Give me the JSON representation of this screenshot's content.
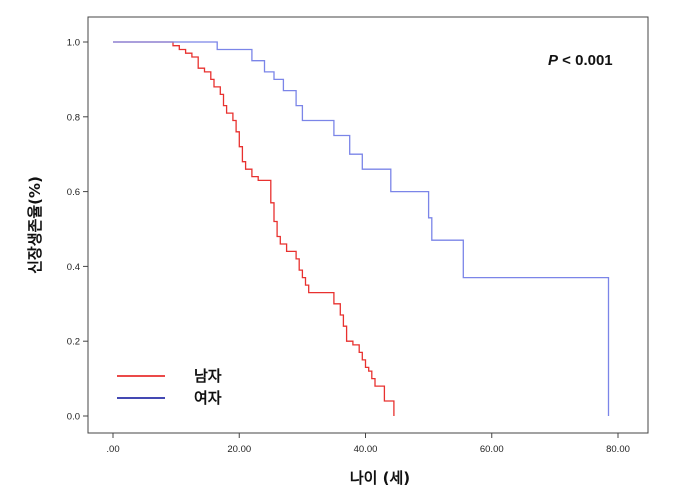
{
  "chart_data": {
    "type": "line",
    "subtype": "kaplan-meier-step",
    "xlabel": "나이 (세)",
    "ylabel": "신장생존율(%)",
    "xlim": [
      0,
      80
    ],
    "ylim": [
      0.0,
      1.0
    ],
    "xticks": [
      0,
      20,
      40,
      60,
      80
    ],
    "xtick_labels": [
      ".00",
      "20.00",
      "40.00",
      "60.00",
      "80.00"
    ],
    "yticks": [
      0.0,
      0.2,
      0.4,
      0.6,
      0.8,
      1.0
    ],
    "ytick_labels": [
      "0.0",
      "0.2",
      "0.4",
      "0.6",
      "0.8",
      "1.0"
    ],
    "annotation": {
      "italic": "P",
      "rest": " < 0.001"
    },
    "legend_position": "bottom-left",
    "grid": false,
    "series": [
      {
        "name": "남자",
        "color": "#e8312f",
        "points": [
          [
            0,
            1.0
          ],
          [
            9.5,
            1.0
          ],
          [
            9.5,
            0.99
          ],
          [
            10.5,
            0.99
          ],
          [
            10.5,
            0.98
          ],
          [
            11.5,
            0.98
          ],
          [
            11.5,
            0.97
          ],
          [
            12.5,
            0.97
          ],
          [
            12.5,
            0.96
          ],
          [
            13.5,
            0.96
          ],
          [
            13.5,
            0.93
          ],
          [
            14.5,
            0.93
          ],
          [
            14.5,
            0.92
          ],
          [
            15.5,
            0.92
          ],
          [
            15.5,
            0.9
          ],
          [
            16.0,
            0.9
          ],
          [
            16.0,
            0.88
          ],
          [
            17.0,
            0.88
          ],
          [
            17.0,
            0.86
          ],
          [
            17.5,
            0.86
          ],
          [
            17.5,
            0.83
          ],
          [
            18.0,
            0.83
          ],
          [
            18.0,
            0.81
          ],
          [
            19.0,
            0.81
          ],
          [
            19.0,
            0.79
          ],
          [
            19.5,
            0.79
          ],
          [
            19.5,
            0.76
          ],
          [
            20.0,
            0.76
          ],
          [
            20.0,
            0.72
          ],
          [
            20.5,
            0.72
          ],
          [
            20.5,
            0.68
          ],
          [
            21.0,
            0.68
          ],
          [
            21.0,
            0.66
          ],
          [
            22.0,
            0.66
          ],
          [
            22.0,
            0.64
          ],
          [
            23.0,
            0.64
          ],
          [
            23.0,
            0.63
          ],
          [
            25.0,
            0.63
          ],
          [
            25.0,
            0.57
          ],
          [
            25.5,
            0.57
          ],
          [
            25.5,
            0.52
          ],
          [
            26.0,
            0.52
          ],
          [
            26.0,
            0.48
          ],
          [
            26.5,
            0.48
          ],
          [
            26.5,
            0.46
          ],
          [
            27.5,
            0.46
          ],
          [
            27.5,
            0.44
          ],
          [
            29.0,
            0.44
          ],
          [
            29.0,
            0.42
          ],
          [
            29.5,
            0.42
          ],
          [
            29.5,
            0.39
          ],
          [
            30.0,
            0.39
          ],
          [
            30.0,
            0.37
          ],
          [
            30.5,
            0.37
          ],
          [
            30.5,
            0.35
          ],
          [
            31.0,
            0.35
          ],
          [
            31.0,
            0.33
          ],
          [
            35.0,
            0.33
          ],
          [
            35.0,
            0.3
          ],
          [
            36.0,
            0.3
          ],
          [
            36.0,
            0.27
          ],
          [
            36.5,
            0.27
          ],
          [
            36.5,
            0.24
          ],
          [
            37.0,
            0.24
          ],
          [
            37.0,
            0.2
          ],
          [
            38.0,
            0.2
          ],
          [
            38.0,
            0.19
          ],
          [
            39.0,
            0.19
          ],
          [
            39.0,
            0.17
          ],
          [
            39.5,
            0.17
          ],
          [
            39.5,
            0.15
          ],
          [
            40.0,
            0.15
          ],
          [
            40.0,
            0.13
          ],
          [
            40.5,
            0.13
          ],
          [
            40.5,
            0.12
          ],
          [
            41.0,
            0.12
          ],
          [
            41.0,
            0.1
          ],
          [
            41.5,
            0.1
          ],
          [
            41.5,
            0.08
          ],
          [
            43.0,
            0.08
          ],
          [
            43.0,
            0.04
          ],
          [
            44.5,
            0.04
          ],
          [
            44.5,
            0.0
          ]
        ]
      },
      {
        "name": "여자",
        "color": "#7b85e8",
        "points": [
          [
            0,
            1.0
          ],
          [
            16.5,
            1.0
          ],
          [
            16.5,
            0.98
          ],
          [
            22.0,
            0.98
          ],
          [
            22.0,
            0.95
          ],
          [
            24.0,
            0.95
          ],
          [
            24.0,
            0.92
          ],
          [
            25.5,
            0.92
          ],
          [
            25.5,
            0.9
          ],
          [
            27.0,
            0.9
          ],
          [
            27.0,
            0.87
          ],
          [
            29.0,
            0.87
          ],
          [
            29.0,
            0.83
          ],
          [
            30.0,
            0.83
          ],
          [
            30.0,
            0.79
          ],
          [
            35.0,
            0.79
          ],
          [
            35.0,
            0.75
          ],
          [
            37.5,
            0.75
          ],
          [
            37.5,
            0.7
          ],
          [
            39.5,
            0.7
          ],
          [
            39.5,
            0.66
          ],
          [
            44.0,
            0.66
          ],
          [
            44.0,
            0.6
          ],
          [
            50.0,
            0.6
          ],
          [
            50.0,
            0.53
          ],
          [
            50.5,
            0.53
          ],
          [
            50.5,
            0.47
          ],
          [
            55.5,
            0.47
          ],
          [
            55.5,
            0.37
          ],
          [
            78.5,
            0.37
          ],
          [
            78.5,
            0.0
          ]
        ]
      }
    ]
  }
}
